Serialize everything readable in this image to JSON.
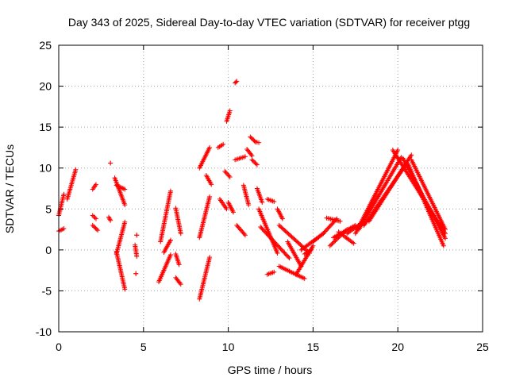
{
  "chart_data": {
    "type": "scatter",
    "title": "Day 343 of 2025, Sidereal Day-to-day VTEC variation (SDTVAR) for receiver ptgg",
    "xlabel": "GPS time / hours",
    "ylabel": "SDTVAR / TECUs",
    "xlim": [
      0,
      25
    ],
    "ylim": [
      -10,
      25
    ],
    "x_ticks": [
      0,
      5,
      10,
      15,
      20,
      25
    ],
    "y_ticks": [
      -10,
      -5,
      0,
      5,
      10,
      15,
      20,
      25
    ],
    "grid": true,
    "legend": "none",
    "marker": "plus",
    "color": "#ff0000",
    "segments": [
      {
        "x": [
          0.0,
          0.3
        ],
        "y": [
          2.3,
          2.6
        ]
      },
      {
        "x": [
          0.0,
          0.3
        ],
        "y": [
          4.2,
          6.8
        ]
      },
      {
        "x": [
          0.5,
          1.0
        ],
        "y": [
          6.2,
          9.8
        ]
      },
      {
        "x": [
          2.0,
          2.2
        ],
        "y": [
          7.4,
          8.0
        ]
      },
      {
        "x": [
          2.0,
          2.2
        ],
        "y": [
          4.2,
          3.8
        ]
      },
      {
        "x": [
          2.0,
          2.3
        ],
        "y": [
          3.0,
          2.4
        ]
      },
      {
        "x": [
          2.95,
          3.05
        ],
        "y": [
          4.0,
          3.6
        ]
      },
      {
        "x": [
          3.05,
          3.05
        ],
        "y": [
          10.6,
          10.6
        ]
      },
      {
        "x": [
          3.3,
          3.9
        ],
        "y": [
          8.8,
          5.5
        ]
      },
      {
        "x": [
          3.4,
          3.9
        ],
        "y": [
          7.9,
          7.4
        ]
      },
      {
        "x": [
          3.4,
          3.9
        ],
        "y": [
          -0.5,
          3.4
        ]
      },
      {
        "x": [
          3.4,
          3.9
        ],
        "y": [
          -0.2,
          -4.8
        ]
      },
      {
        "x": [
          4.6,
          4.6
        ],
        "y": [
          1.8,
          1.8
        ]
      },
      {
        "x": [
          4.5,
          4.6
        ],
        "y": [
          0.6,
          -0.8
        ]
      },
      {
        "x": [
          4.55,
          4.55
        ],
        "y": [
          -2.9,
          -2.9
        ]
      },
      {
        "x": [
          5.9,
          6.6
        ],
        "y": [
          -3.9,
          -0.6
        ]
      },
      {
        "x": [
          6.0,
          6.6
        ],
        "y": [
          1.0,
          7.2
        ]
      },
      {
        "x": [
          6.2,
          6.6
        ],
        "y": [
          -0.3,
          1.2
        ]
      },
      {
        "x": [
          6.9,
          7.2
        ],
        "y": [
          5.1,
          2.0
        ]
      },
      {
        "x": [
          6.9,
          7.1
        ],
        "y": [
          -0.5,
          -1.8
        ]
      },
      {
        "x": [
          6.9,
          7.2
        ],
        "y": [
          -3.4,
          -4.2
        ]
      },
      {
        "x": [
          8.3,
          8.9
        ],
        "y": [
          10.0,
          12.5
        ]
      },
      {
        "x": [
          8.3,
          8.9
        ],
        "y": [
          1.5,
          6.5
        ]
      },
      {
        "x": [
          8.3,
          8.9
        ],
        "y": [
          -6.0,
          -0.9
        ]
      },
      {
        "x": [
          8.7,
          9.0
        ],
        "y": [
          9.1,
          8.0
        ]
      },
      {
        "x": [
          9.4,
          9.7
        ],
        "y": [
          12.5,
          12.9
        ]
      },
      {
        "x": [
          9.5,
          9.9
        ],
        "y": [
          6.2,
          5.0
        ]
      },
      {
        "x": [
          9.9,
          10.1
        ],
        "y": [
          15.7,
          17.0
        ]
      },
      {
        "x": [
          9.8,
          10.1
        ],
        "y": [
          9.6,
          8.9
        ]
      },
      {
        "x": [
          10.0,
          10.3
        ],
        "y": [
          5.8,
          4.6
        ]
      },
      {
        "x": [
          10.4,
          10.5
        ],
        "y": [
          20.4,
          20.6
        ]
      },
      {
        "x": [
          10.4,
          11.0
        ],
        "y": [
          11.0,
          11.4
        ]
      },
      {
        "x": [
          10.5,
          11.0
        ],
        "y": [
          3.0,
          1.8
        ]
      },
      {
        "x": [
          10.9,
          11.2
        ],
        "y": [
          7.9,
          5.5
        ]
      },
      {
        "x": [
          11.1,
          11.4
        ],
        "y": [
          12.3,
          11.5
        ]
      },
      {
        "x": [
          11.3,
          11.6
        ],
        "y": [
          13.8,
          13.2
        ]
      },
      {
        "x": [
          11.6,
          11.8
        ],
        "y": [
          13.2,
          13.1
        ]
      },
      {
        "x": [
          11.4,
          11.7
        ],
        "y": [
          11.0,
          10.4
        ]
      },
      {
        "x": [
          11.7,
          12.0
        ],
        "y": [
          7.5,
          5.8
        ]
      },
      {
        "x": [
          11.8,
          12.9
        ],
        "y": [
          5.0,
          -0.4
        ]
      },
      {
        "x": [
          11.9,
          13.6
        ],
        "y": [
          2.8,
          -1.0
        ]
      },
      {
        "x": [
          12.3,
          12.7
        ],
        "y": [
          6.2,
          5.9
        ]
      },
      {
        "x": [
          12.3,
          12.7
        ],
        "y": [
          -3.0,
          -2.7
        ]
      },
      {
        "x": [
          12.9,
          13.2
        ],
        "y": [
          5.0,
          3.8
        ]
      },
      {
        "x": [
          13.0,
          14.8
        ],
        "y": [
          3.0,
          -0.4
        ]
      },
      {
        "x": [
          13.5,
          14.3
        ],
        "y": [
          1.0,
          -2.0
        ]
      },
      {
        "x": [
          13.0,
          14.5
        ],
        "y": [
          -2.0,
          -3.5
        ]
      },
      {
        "x": [
          14.0,
          15.0
        ],
        "y": [
          -3.0,
          0.5
        ]
      },
      {
        "x": [
          14.3,
          15.6
        ],
        "y": [
          0.0,
          2.0
        ]
      },
      {
        "x": [
          15.0,
          15.6
        ],
        "y": [
          1.0,
          2.0
        ]
      },
      {
        "x": [
          14.5,
          14.9
        ],
        "y": [
          -0.5,
          0.0
        ]
      },
      {
        "x": [
          15.6,
          16.4
        ],
        "y": [
          2.0,
          3.8
        ]
      },
      {
        "x": [
          15.8,
          16.6
        ],
        "y": [
          3.9,
          3.5
        ]
      },
      {
        "x": [
          16.0,
          17.0
        ],
        "y": [
          0.5,
          2.5
        ]
      },
      {
        "x": [
          16.2,
          17.5
        ],
        "y": [
          1.5,
          3.0
        ]
      },
      {
        "x": [
          16.5,
          17.4
        ],
        "y": [
          2.2,
          0.8
        ]
      },
      {
        "x": [
          17.0,
          18.0
        ],
        "y": [
          2.0,
          3.5
        ]
      },
      {
        "x": [
          17.5,
          20.0
        ],
        "y": [
          2.0,
          12.2
        ]
      },
      {
        "x": [
          17.7,
          20.2
        ],
        "y": [
          2.5,
          11.3
        ]
      },
      {
        "x": [
          18.0,
          20.5
        ],
        "y": [
          3.0,
          10.5
        ]
      },
      {
        "x": [
          18.3,
          20.8
        ],
        "y": [
          3.5,
          11.6
        ]
      },
      {
        "x": [
          19.7,
          22.8
        ],
        "y": [
          12.2,
          2.0
        ]
      },
      {
        "x": [
          20.3,
          22.8
        ],
        "y": [
          11.2,
          1.4
        ]
      },
      {
        "x": [
          20.6,
          22.7
        ],
        "y": [
          10.5,
          0.5
        ]
      },
      {
        "x": [
          20.8,
          22.8
        ],
        "y": [
          11.0,
          2.5
        ]
      }
    ]
  }
}
